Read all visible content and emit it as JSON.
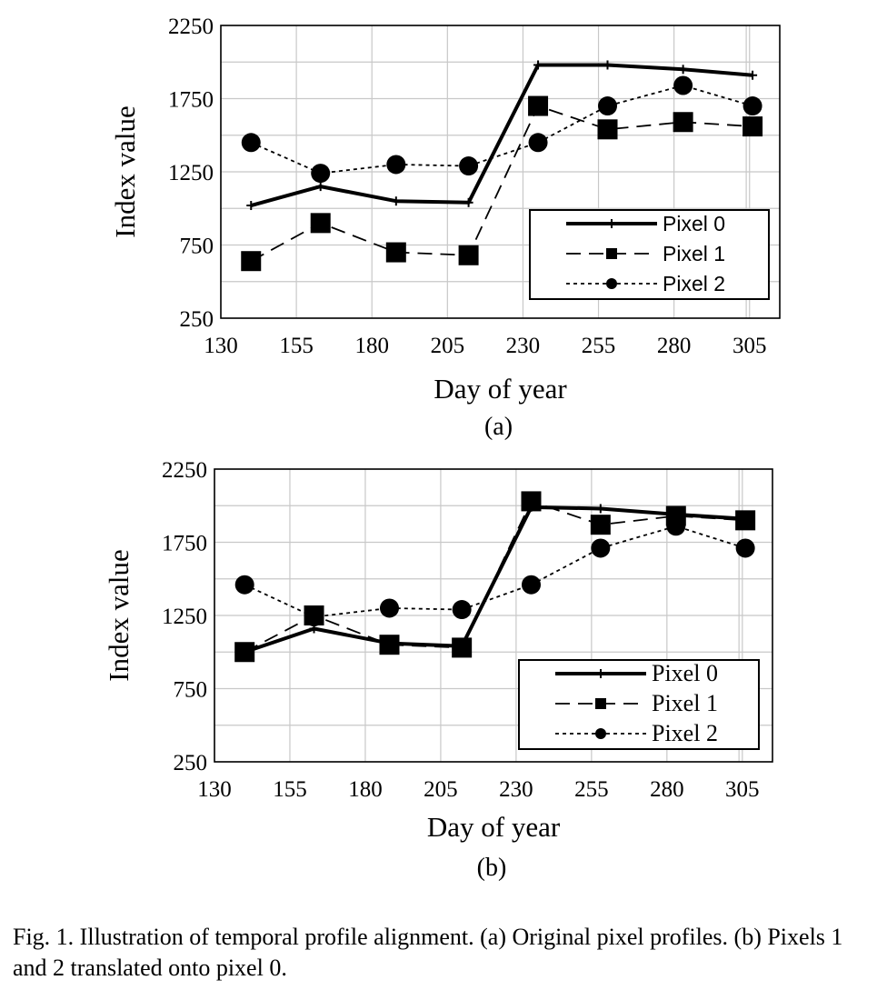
{
  "chart_data": [
    {
      "type": "line",
      "panel_label": "(a)",
      "xlabel": "Day of year",
      "ylabel": "Index value",
      "x_ticks": [
        130,
        155,
        180,
        205,
        230,
        255,
        280,
        305
      ],
      "y_ticks": [
        250,
        750,
        1250,
        1750,
        2250
      ],
      "y_tick_labels": [
        "250",
        "750",
        "1250",
        "1750",
        "2250"
      ],
      "xlim": [
        130,
        315
      ],
      "ylim": [
        250,
        2250
      ],
      "grid": true,
      "legend_position": "bottom-right",
      "legend_font": "sans",
      "series": [
        {
          "name": "Pixel 0",
          "style": "solid",
          "marker": "plus",
          "x": [
            140,
            163,
            188,
            212,
            235,
            258,
            283,
            306
          ],
          "y": [
            1020,
            1150,
            1050,
            1040,
            1980,
            1980,
            1950,
            1910
          ]
        },
        {
          "name": "Pixel 1",
          "style": "dashed",
          "marker": "square",
          "x": [
            140,
            163,
            188,
            212,
            235,
            258,
            283,
            306
          ],
          "y": [
            640,
            900,
            700,
            680,
            1700,
            1540,
            1590,
            1560
          ]
        },
        {
          "name": "Pixel 2",
          "style": "dotted",
          "marker": "circle",
          "x": [
            140,
            163,
            188,
            212,
            235,
            258,
            283,
            306
          ],
          "y": [
            1450,
            1240,
            1300,
            1290,
            1450,
            1700,
            1840,
            1700
          ]
        }
      ]
    },
    {
      "type": "line",
      "panel_label": "(b)",
      "xlabel": "Day of year",
      "ylabel": "Index value",
      "x_ticks": [
        130,
        155,
        180,
        205,
        230,
        255,
        280,
        305
      ],
      "y_ticks": [
        250,
        750,
        1250,
        1750,
        2250
      ],
      "y_tick_labels": [
        "250",
        "750",
        "1250",
        "1750",
        "2250"
      ],
      "xlim": [
        130,
        315
      ],
      "ylim": [
        250,
        2250
      ],
      "grid": true,
      "legend_position": "bottom-right",
      "legend_font": "serif",
      "series": [
        {
          "name": "Pixel 0",
          "style": "solid",
          "marker": "plus",
          "x": [
            140,
            163,
            188,
            212,
            235,
            258,
            283,
            306
          ],
          "y": [
            1000,
            1160,
            1060,
            1040,
            1990,
            1980,
            1940,
            1910
          ]
        },
        {
          "name": "Pixel 1",
          "style": "dashed",
          "marker": "square",
          "x": [
            140,
            163,
            188,
            212,
            235,
            258,
            283,
            306
          ],
          "y": [
            1000,
            1250,
            1050,
            1030,
            2030,
            1870,
            1930,
            1900
          ]
        },
        {
          "name": "Pixel 2",
          "style": "dotted",
          "marker": "circle",
          "x": [
            140,
            163,
            188,
            212,
            235,
            258,
            283,
            306
          ],
          "y": [
            1460,
            1240,
            1300,
            1290,
            1460,
            1710,
            1860,
            1710
          ]
        }
      ]
    }
  ],
  "caption": {
    "text": "Fig. 1.  Illustration of temporal profile alignment. (a) Original pixel profiles. (b) Pixels 1 and 2 translated onto pixel 0."
  }
}
